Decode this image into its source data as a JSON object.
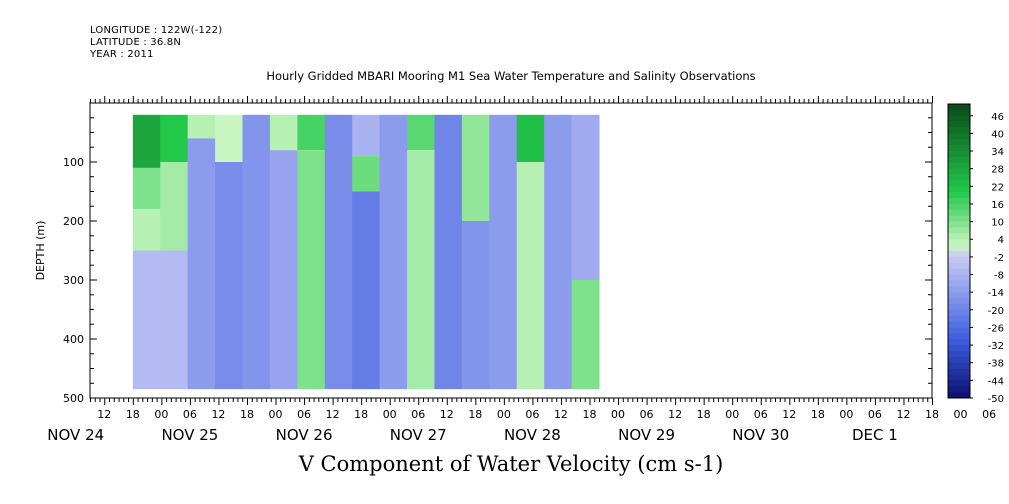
{
  "header": {
    "longitude": "LONGITUDE : 122W(-122)",
    "latitude": "LATITUDE : 36.8N",
    "year": "YEAR : 2011"
  },
  "chart_data": {
    "type": "heatmap",
    "title": "Hourly Gridded MBARI Mooring M1 Sea Water Temperature and Salinity Observations",
    "xlabel": "V Component of Water Velocity (cm s-1)",
    "ylabel": "DEPTH (m)",
    "ylim": [
      500,
      0
    ],
    "y_ticks": [
      "100",
      "200",
      "300",
      "400",
      "500"
    ],
    "x_hour_ticks": [
      "12",
      "18",
      "00",
      "06",
      "12",
      "18",
      "00",
      "06",
      "12",
      "18",
      "00",
      "06",
      "12",
      "18",
      "00",
      "06",
      "12",
      "18",
      "00",
      "06",
      "12",
      "18",
      "00",
      "06",
      "12",
      "18",
      "00",
      "06",
      "12",
      "18",
      "00",
      "06"
    ],
    "x_day_ticks": [
      "NOV 24",
      "NOV 25",
      "NOV 26",
      "NOV 27",
      "NOV 28",
      "NOV 29",
      "NOV 30",
      "DEC  1"
    ],
    "colorbar": {
      "labels": [
        "46",
        "40",
        "34",
        "28",
        "22",
        "16",
        "10",
        "4",
        "-2",
        "-8",
        "-14",
        "-20",
        "-26",
        "-32",
        "-38",
        "-44",
        "-50"
      ],
      "range": [
        -50,
        50
      ],
      "colors": {
        "high": "#0a4a1a",
        "mid_high": "#22c84a",
        "near_zero_pos": "#c8f5c0",
        "near_zero_neg": "#c8caf5",
        "mid_low": "#3d5ee0",
        "low": "#0a0f6e"
      }
    },
    "data_extent": {
      "start": "NOV 24 18:00",
      "end": "NOV 28 20:00",
      "depth_top": 20,
      "depth_bottom": 485
    },
    "columns": [
      {
        "time": "NOV 24 18",
        "bands": [
          {
            "top": 20,
            "bottom": 110,
            "v": 28
          },
          {
            "top": 110,
            "bottom": 180,
            "v": 10
          },
          {
            "top": 180,
            "bottom": 250,
            "v": 4
          },
          {
            "top": 250,
            "bottom": 485,
            "v": -6
          }
        ]
      },
      {
        "time": "NOV 25 00",
        "bands": [
          {
            "top": 20,
            "bottom": 100,
            "v": 20
          },
          {
            "top": 100,
            "bottom": 250,
            "v": 6
          },
          {
            "top": 250,
            "bottom": 485,
            "v": -6
          }
        ]
      },
      {
        "time": "NOV 25 06",
        "bands": [
          {
            "top": 20,
            "bottom": 60,
            "v": 4
          },
          {
            "top": 60,
            "bottom": 485,
            "v": -14
          }
        ]
      },
      {
        "time": "NOV 25 12",
        "bands": [
          {
            "top": 20,
            "bottom": 100,
            "v": 2
          },
          {
            "top": 100,
            "bottom": 485,
            "v": -18
          }
        ]
      },
      {
        "time": "NOV 25 18",
        "bands": [
          {
            "top": 20,
            "bottom": 485,
            "v": -16
          }
        ]
      },
      {
        "time": "NOV 26 00",
        "bands": [
          {
            "top": 20,
            "bottom": 80,
            "v": 4
          },
          {
            "top": 80,
            "bottom": 485,
            "v": -12
          }
        ]
      },
      {
        "time": "NOV 26 06",
        "bands": [
          {
            "top": 20,
            "bottom": 80,
            "v": 16
          },
          {
            "top": 80,
            "bottom": 485,
            "v": 10
          }
        ]
      },
      {
        "time": "NOV 26 12",
        "bands": [
          {
            "top": 20,
            "bottom": 485,
            "v": -18
          }
        ]
      },
      {
        "time": "NOV 26 18",
        "bands": [
          {
            "top": 20,
            "bottom": 90,
            "v": -8
          },
          {
            "top": 90,
            "bottom": 150,
            "v": 12
          },
          {
            "top": 150,
            "bottom": 485,
            "v": -22
          }
        ]
      },
      {
        "time": "NOV 27 00",
        "bands": [
          {
            "top": 20,
            "bottom": 485,
            "v": -14
          }
        ]
      },
      {
        "time": "NOV 27 06",
        "bands": [
          {
            "top": 20,
            "bottom": 80,
            "v": 14
          },
          {
            "top": 80,
            "bottom": 485,
            "v": 6
          }
        ]
      },
      {
        "time": "NOV 27 12",
        "bands": [
          {
            "top": 20,
            "bottom": 485,
            "v": -20
          }
        ]
      },
      {
        "time": "NOV 27 18",
        "bands": [
          {
            "top": 20,
            "bottom": 200,
            "v": 8
          },
          {
            "top": 200,
            "bottom": 485,
            "v": -16
          }
        ]
      },
      {
        "time": "NOV 28 00",
        "bands": [
          {
            "top": 20,
            "bottom": 485,
            "v": -14
          }
        ]
      },
      {
        "time": "NOV 28 06",
        "bands": [
          {
            "top": 20,
            "bottom": 100,
            "v": 22
          },
          {
            "top": 100,
            "bottom": 485,
            "v": 4
          }
        ]
      },
      {
        "time": "NOV 28 12",
        "bands": [
          {
            "top": 20,
            "bottom": 485,
            "v": -14
          }
        ]
      },
      {
        "time": "NOV 28 18",
        "bands": [
          {
            "top": 20,
            "bottom": 300,
            "v": -10
          },
          {
            "top": 300,
            "bottom": 485,
            "v": 10
          }
        ]
      }
    ]
  }
}
